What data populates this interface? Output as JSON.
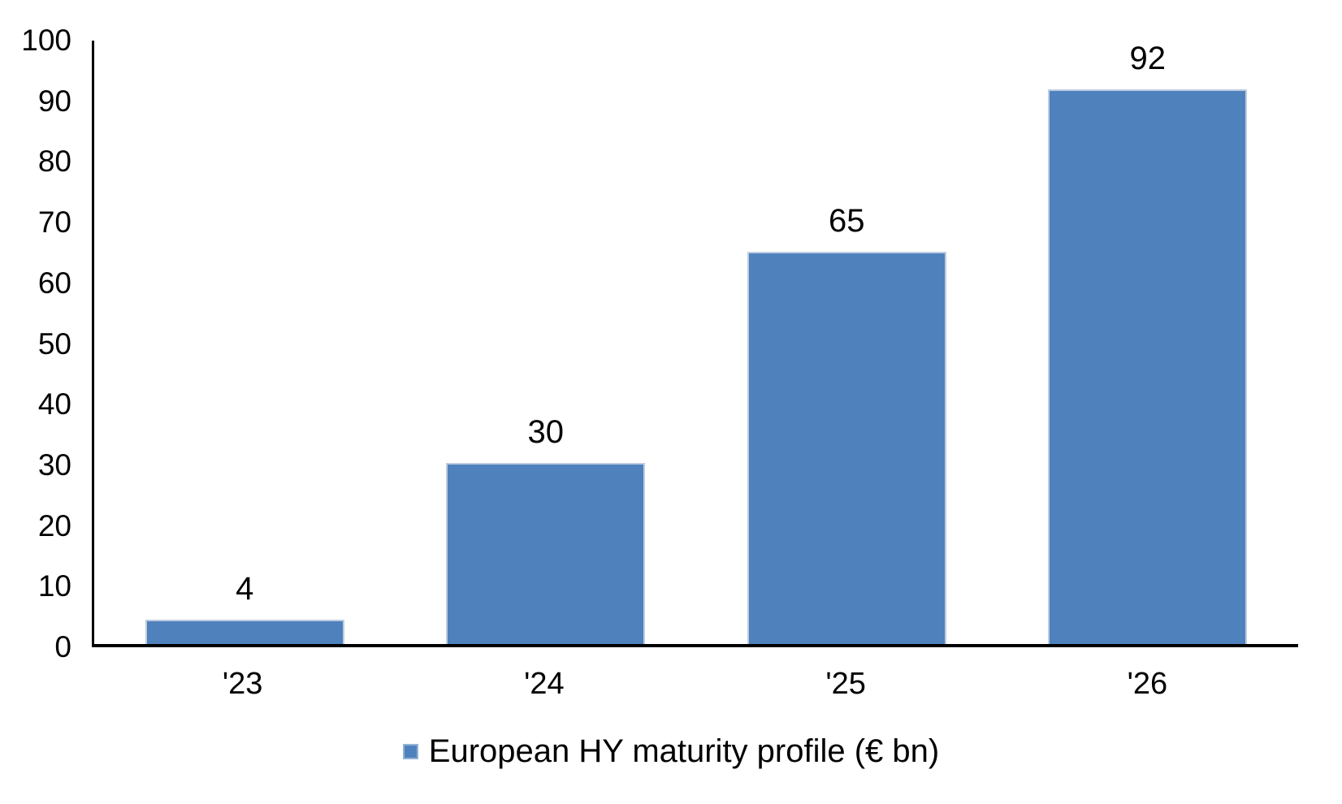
{
  "chart_data": {
    "type": "bar",
    "title": "",
    "xlabel": "",
    "ylabel": "",
    "categories": [
      "'23",
      "'24",
      "'25",
      "'26"
    ],
    "values": [
      4,
      30,
      65,
      92
    ],
    "data_labels": [
      "4",
      "30",
      "65",
      "92"
    ],
    "series": [
      {
        "name": "European HY maturity profile (€ bn)",
        "values": [
          4,
          30,
          65,
          92
        ]
      }
    ],
    "ylim": [
      0,
      100
    ],
    "yticks": [
      0,
      10,
      20,
      30,
      40,
      50,
      60,
      70,
      80,
      90,
      100
    ],
    "grid": false,
    "legend_position": "bottom",
    "colors": {
      "bar_fill": "#4f81bd",
      "bar_border": "#bfcde0",
      "axis": "#000000",
      "text": "#000000",
      "background": "#ffffff"
    }
  },
  "legend": {
    "label": "European HY maturity profile (€ bn)"
  }
}
